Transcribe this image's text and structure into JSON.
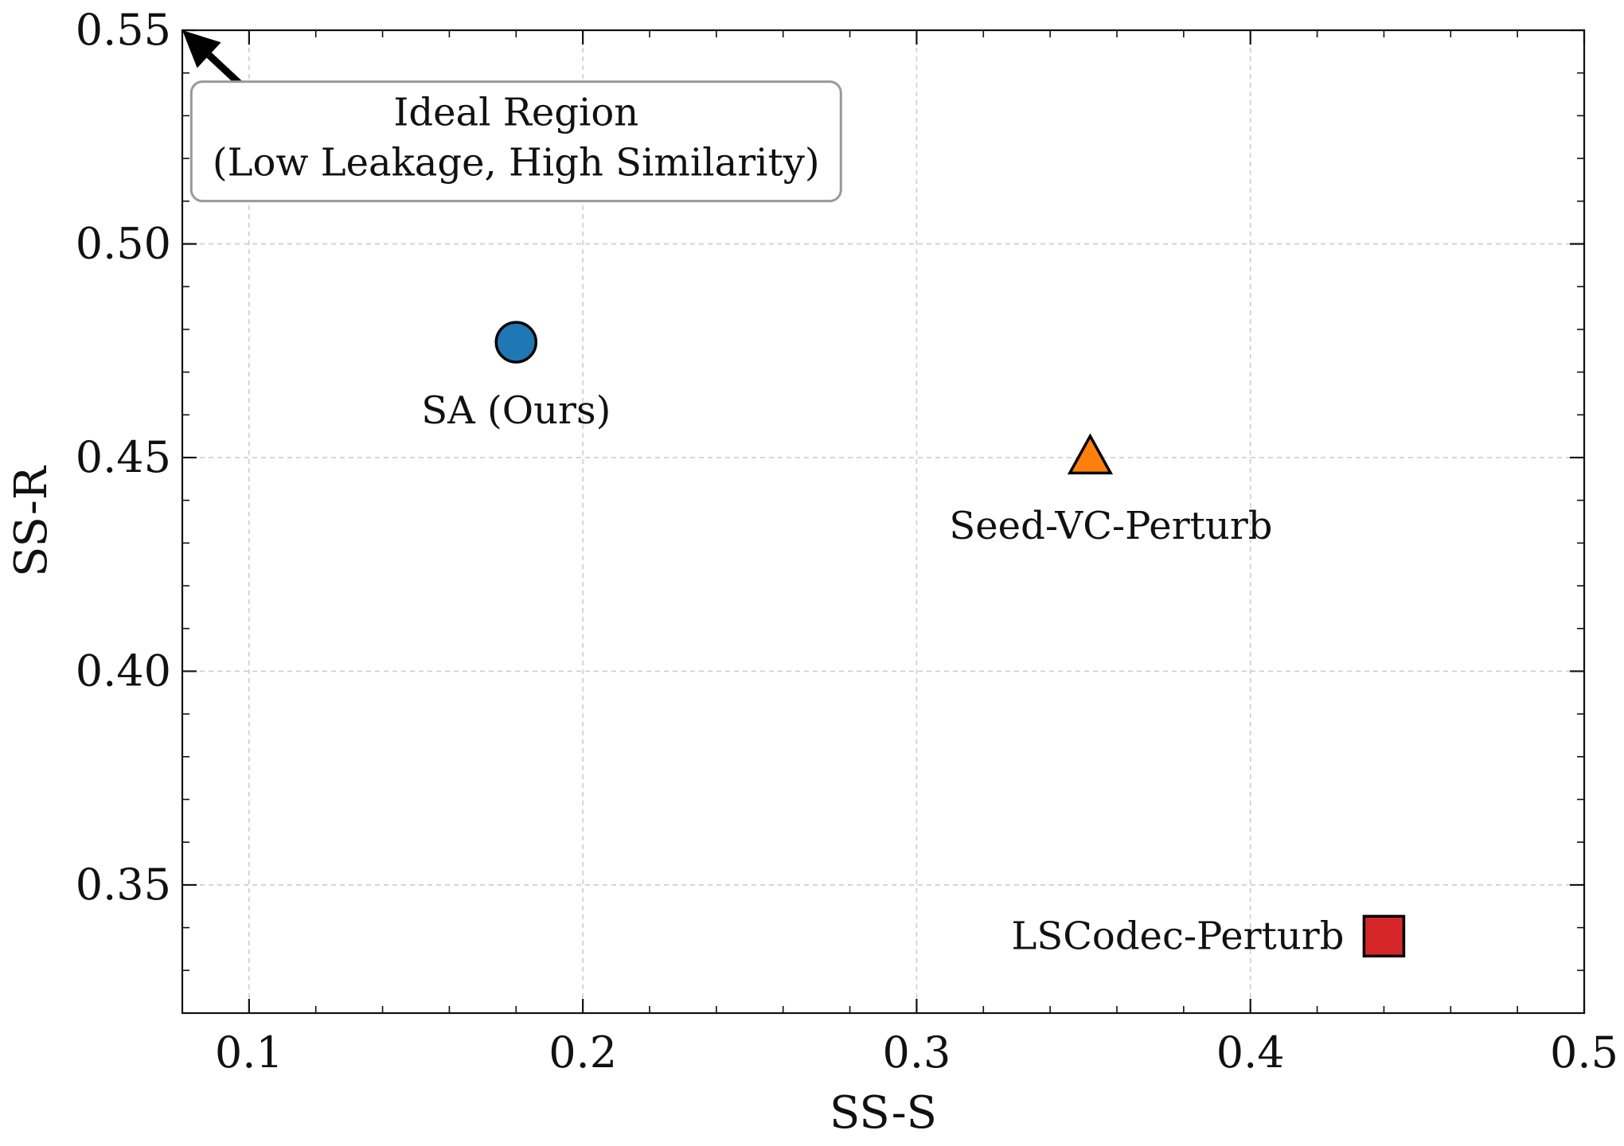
{
  "chart_data": {
    "type": "scatter",
    "title": "",
    "xlabel": "SS-S",
    "ylabel": "SS-R",
    "xlim": [
      0.08,
      0.5
    ],
    "ylim": [
      0.32,
      0.55
    ],
    "x_ticks": [
      0.1,
      0.2,
      0.3,
      0.4,
      0.5
    ],
    "x_tick_labels": [
      "0.1",
      "0.2",
      "0.3",
      "0.4",
      "0.5"
    ],
    "y_ticks": [
      0.35,
      0.4,
      0.45,
      0.5,
      0.55
    ],
    "y_tick_labels": [
      "0.35",
      "0.40",
      "0.45",
      "0.50",
      "0.55"
    ],
    "grid": true,
    "points": [
      {
        "label": "SA (Ours)",
        "x": 0.18,
        "y": 0.477,
        "marker": "circle",
        "color": "#1f77b4",
        "label_position": "below"
      },
      {
        "label": "Seed-VC-Perturb",
        "x": 0.352,
        "y": 0.45,
        "marker": "triangle",
        "color": "#ff7f0e",
        "label_position": "below"
      },
      {
        "label": "LSCodec-Perturb",
        "x": 0.44,
        "y": 0.338,
        "marker": "square",
        "color": "#d62728",
        "label_position": "left"
      }
    ],
    "annotation": {
      "lines": [
        "Ideal Region",
        "(Low Leakage, High Similarity)"
      ],
      "arrow_to": [
        0.08,
        0.55
      ],
      "arrow_from": [
        0.102,
        0.534
      ],
      "box_anchor": [
        0.18,
        0.524
      ]
    }
  }
}
